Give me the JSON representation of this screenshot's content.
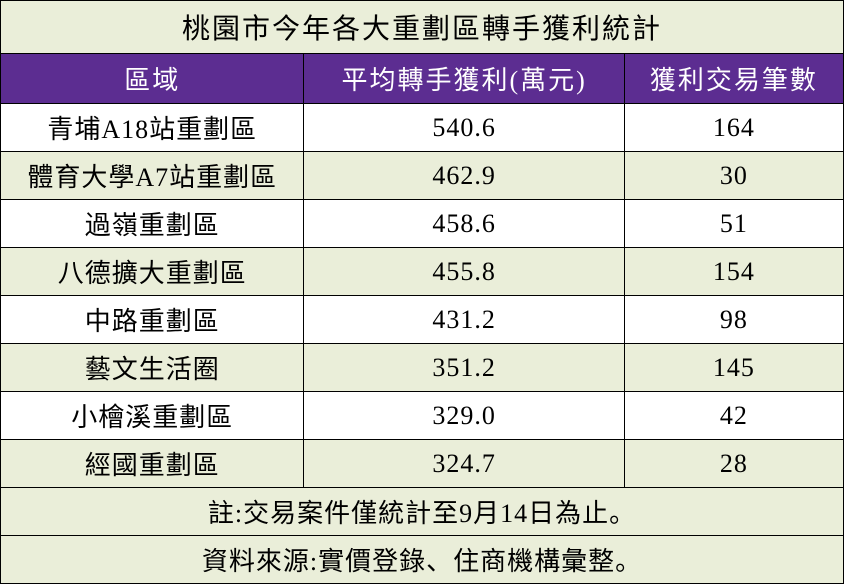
{
  "table": {
    "title": "桃園市今年各大重劃區轉手獲利統計",
    "columns": [
      "區域",
      "平均轉手獲利(萬元)",
      "獲利交易筆數"
    ],
    "rows": [
      [
        "青埔A18站重劃區",
        "540.6",
        "164"
      ],
      [
        "體育大學A7站重劃區",
        "462.9",
        "30"
      ],
      [
        "過嶺重劃區",
        "458.6",
        "51"
      ],
      [
        "八德擴大重劃區",
        "455.8",
        "154"
      ],
      [
        "中路重劃區",
        "431.2",
        "98"
      ],
      [
        "藝文生活圈",
        "351.2",
        "145"
      ],
      [
        "小檜溪重劃區",
        "329.0",
        "42"
      ],
      [
        "經國重劃區",
        "324.7",
        "28"
      ]
    ],
    "note": "註:交易案件僅統計至9月14日為止。",
    "source": "資料來源:實價登錄、住商機構彙整。",
    "styling": {
      "header_bg": "#5c2d91",
      "header_text": "#ffffff",
      "row_odd_bg": "#ffffff",
      "row_even_bg": "#eaeed9",
      "title_bg": "#eaeed9",
      "footer_bg": "#eaeed9",
      "border_color": "#000000",
      "title_fontsize": 28,
      "header_fontsize": 26,
      "cell_fontsize": 26,
      "col_widths": [
        "36%",
        "38%",
        "26%"
      ]
    }
  }
}
